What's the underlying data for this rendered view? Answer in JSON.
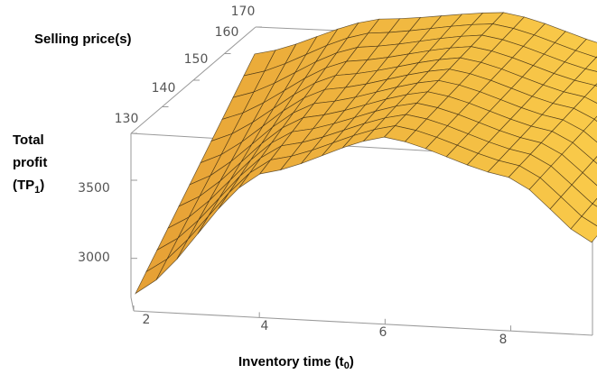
{
  "chart_data": {
    "type": "surface",
    "labels": {
      "selling_price": "Selling price(s)",
      "total_profit_line1": "Total",
      "total_profit_line2": "profit",
      "total_profit_line3": "(TP",
      "total_profit_sub": "1",
      "total_profit_close": ")",
      "inventory_time": "Inventory time (t",
      "inventory_time_sub": "0",
      "inventory_time_close": ")"
    },
    "x_axis": {
      "name": "Inventory time (t0)",
      "range": [
        1.8,
        9.4
      ],
      "ticks": [
        "2",
        "4",
        "6",
        "8"
      ]
    },
    "y_axis": {
      "name": "Selling price(s)",
      "range": [
        130,
        170
      ],
      "ticks": [
        "130",
        "140",
        "150",
        "160",
        "170"
      ]
    },
    "z_axis": {
      "name": "Total profit (TP1)",
      "range": [
        2750,
        3800
      ],
      "ticks": [
        "3000",
        "3500"
      ]
    },
    "surface_samples": {
      "t0": [
        2,
        4,
        6,
        8,
        9.3
      ],
      "profit_at_s_130": [
        2780,
        3450,
        3680,
        3500,
        3180
      ],
      "profit_at_s_170": [
        3500,
        3720,
        3790,
        3620,
        3380
      ]
    },
    "colors": {
      "surface_light": "#ffd36a",
      "surface_mid": "#f5a623",
      "surface_dark": "#b5651d",
      "mesh": "#3a2a10",
      "box": "#9a9a9a"
    },
    "grid": {
      "mesh_lines_t": 22,
      "mesh_lines_s": 11
    }
  }
}
